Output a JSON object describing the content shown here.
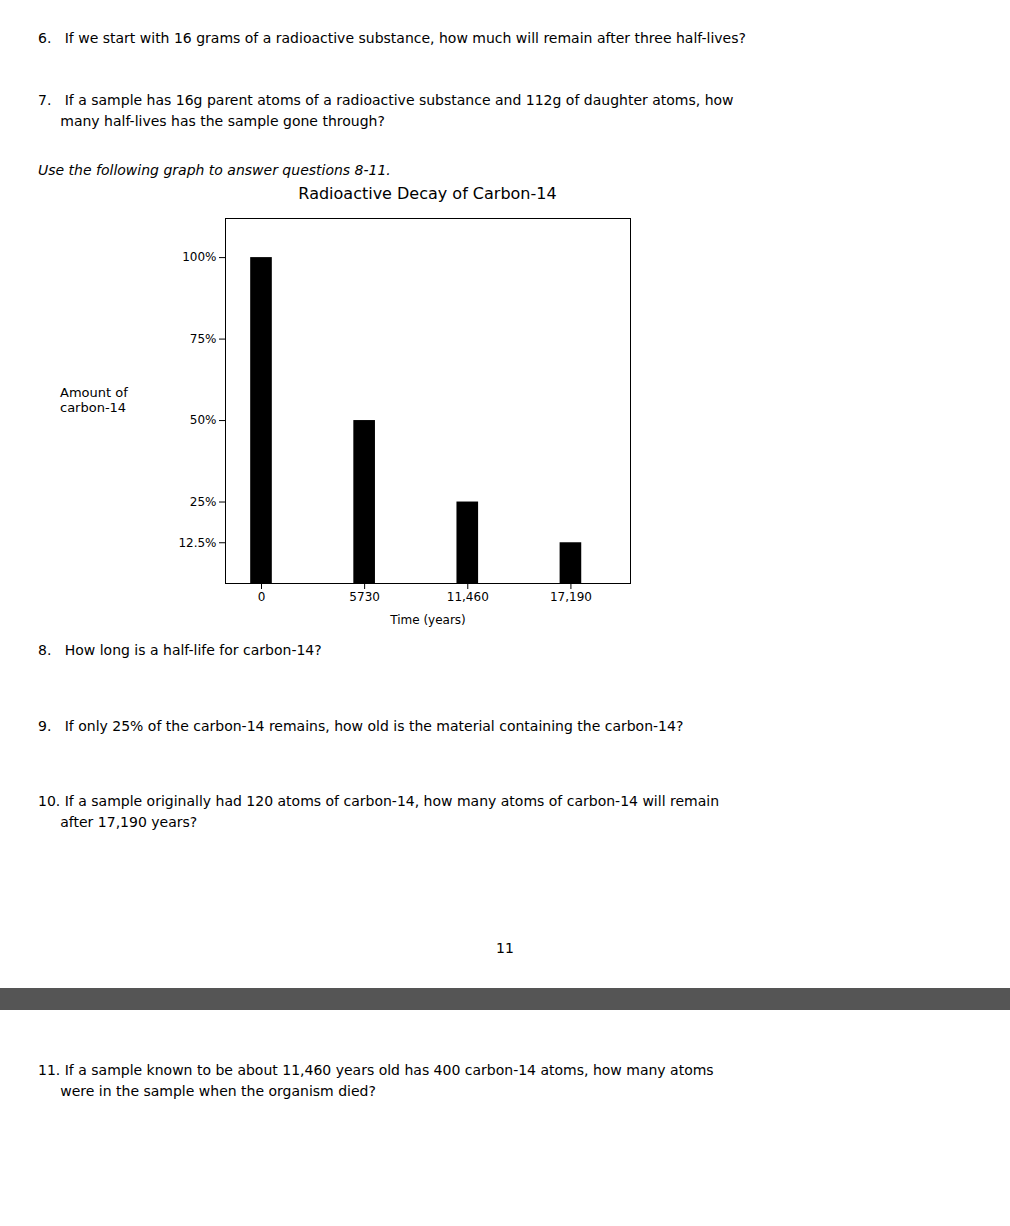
{
  "chart_data": {
    "type": "bar",
    "title": "Radioactive Decay of Carbon-14",
    "xlabel": "Time (years)",
    "ylabel": "Amount of\ncarbon-14",
    "x": [
      0,
      5730,
      11460,
      17190
    ],
    "values": [
      100,
      50,
      25,
      12.5
    ],
    "xlim": [
      -2000,
      20500
    ],
    "xticks": [
      0,
      5730,
      {
        "value": 11460,
        "label": "11,460"
      },
      {
        "value": 17190,
        "label": "17,190"
      }
    ],
    "ylim": [
      0,
      112
    ],
    "yticks": [
      {
        "value": 12.5,
        "label": "12.5%"
      },
      {
        "value": 25,
        "label": "25%"
      },
      {
        "value": 50,
        "label": "50%"
      },
      {
        "value": 75,
        "label": "75%"
      },
      {
        "value": 100,
        "label": "100%"
      }
    ],
    "annotations": [
      "6.   If we start with 16 grams of a radioactive substance, how much will remain after three half-lives?",
      "7.   If a sample has 16g parent atoms of a radioactive substance and 112g of daughter atoms, how",
      "     many half-lives has the sample gone through?",
      "Use the following graph to answer questions 8-11.",
      "8.   How long is a half-life for carbon-14?",
      "9.   If only 25% of the carbon-14 remains, how old is the material containing the carbon-14?",
      "10. If a sample originally had 120 atoms of carbon-14, how many atoms of carbon-14 will remain",
      "     after 17,190 years?",
      "11",
      "11. If a sample known to be about 11,460 years old has 400 carbon-14 atoms, how many atoms",
      "     were in the sample when the organism died?"
    ]
  }
}
